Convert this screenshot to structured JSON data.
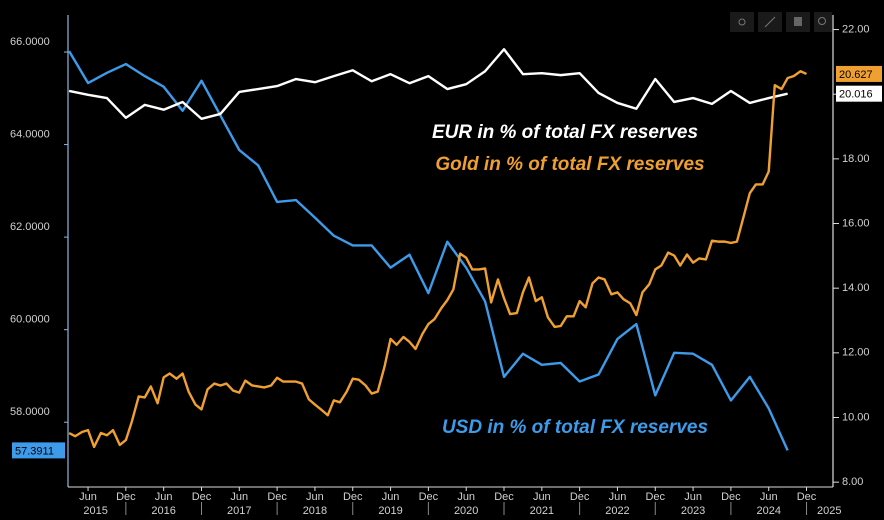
{
  "chart_data": {
    "type": "line",
    "xlim": [
      2015.235,
      2025.35
    ],
    "ylim": [
      56.6,
      66.8
    ],
    "y2lim": [
      7.85,
      22.45
    ],
    "yticks": [
      {
        "value": 58,
        "label": "58.0000"
      },
      {
        "value": 60,
        "label": "60.0000"
      },
      {
        "value": 62,
        "label": "62.0000"
      },
      {
        "value": 64,
        "label": "64.0000"
      },
      {
        "value": 66,
        "label": "66.0000"
      }
    ],
    "y2ticks": [
      {
        "value": 8,
        "label": "8.00"
      },
      {
        "value": 10,
        "label": "10.00"
      },
      {
        "value": 12,
        "label": "12.00"
      },
      {
        "value": 14,
        "label": "14.00"
      },
      {
        "value": 16,
        "label": "16.00"
      },
      {
        "value": 18,
        "label": "18.00"
      },
      {
        "value": 20,
        "label": "20.00"
      },
      {
        "value": 22,
        "label": "22.00"
      }
    ],
    "xticks": [
      {
        "value": 2015.5,
        "label": "Jun"
      },
      {
        "value": 2016.0,
        "label": "Dec"
      },
      {
        "value": 2016.5,
        "label": "Jun"
      },
      {
        "value": 2017.0,
        "label": "Dec"
      },
      {
        "value": 2017.5,
        "label": "Jun"
      },
      {
        "value": 2018.0,
        "label": "Dec"
      },
      {
        "value": 2018.5,
        "label": "Jun"
      },
      {
        "value": 2019.0,
        "label": "Dec"
      },
      {
        "value": 2019.5,
        "label": "Jun"
      },
      {
        "value": 2020.0,
        "label": "Dec"
      },
      {
        "value": 2020.5,
        "label": "Jun"
      },
      {
        "value": 2021.0,
        "label": "Dec"
      },
      {
        "value": 2021.5,
        "label": "Jun"
      },
      {
        "value": 2022.0,
        "label": "Dec"
      },
      {
        "value": 2022.5,
        "label": "Jun"
      },
      {
        "value": 2023.0,
        "label": "Dec"
      },
      {
        "value": 2023.5,
        "label": "Jun"
      },
      {
        "value": 2024.0,
        "label": "Dec"
      },
      {
        "value": 2024.5,
        "label": "Jun"
      },
      {
        "value": 2025.0,
        "label": "Dec"
      }
    ],
    "year_ticks": [
      {
        "value": 2015.6,
        "label": "2015"
      },
      {
        "value": 2016.5,
        "label": "2016"
      },
      {
        "value": 2017.5,
        "label": "2017"
      },
      {
        "value": 2018.5,
        "label": "2018"
      },
      {
        "value": 2019.5,
        "label": "2019"
      },
      {
        "value": 2020.5,
        "label": "2020"
      },
      {
        "value": 2021.5,
        "label": "2021"
      },
      {
        "value": 2022.5,
        "label": "2022"
      },
      {
        "value": 2023.5,
        "label": "2023"
      },
      {
        "value": 2024.5,
        "label": "2024"
      },
      {
        "value": 2025.3,
        "label": "2025"
      }
    ],
    "annotations": [
      {
        "text": "EUR in % of total FX reserves",
        "color": "#ffffff"
      },
      {
        "text": "Gold in % of total FX reserves",
        "color": "#f0a030"
      },
      {
        "text": "USD in % of total FX reserves",
        "color": "#3d9be9"
      }
    ],
    "series": [
      {
        "name": "USD",
        "color": "#3d9be9",
        "axis": "y",
        "end_label": "57.3911",
        "x": [
          2015.25,
          2015.5,
          2015.75,
          2016.0,
          2016.25,
          2016.5,
          2016.75,
          2017.0,
          2017.25,
          2017.5,
          2017.75,
          2018.0,
          2018.25,
          2018.5,
          2018.75,
          2019.0,
          2019.25,
          2019.5,
          2019.75,
          2020.0,
          2020.25,
          2020.5,
          2020.75,
          2021.0,
          2021.25,
          2021.5,
          2021.75,
          2022.0,
          2022.25,
          2022.5,
          2022.75,
          2023.0,
          2023.25,
          2023.5,
          2023.75,
          2024.0,
          2024.25,
          2024.5,
          2024.75
        ],
        "values": [
          66.02,
          65.33,
          65.55,
          65.74,
          65.48,
          65.25,
          64.73,
          65.38,
          64.63,
          63.88,
          63.55,
          62.76,
          62.8,
          62.42,
          62.03,
          61.82,
          61.82,
          61.34,
          61.62,
          60.79,
          61.9,
          61.34,
          60.61,
          58.98,
          59.48,
          59.24,
          59.28,
          58.88,
          59.03,
          59.8,
          60.12,
          58.58,
          59.5,
          59.48,
          59.24,
          58.47,
          58.98,
          58.3,
          57.3911
        ]
      },
      {
        "name": "EUR",
        "color": "#ffffff",
        "axis": "y2",
        "end_label": "20.016",
        "x": [
          2015.25,
          2015.5,
          2015.75,
          2016.0,
          2016.25,
          2016.5,
          2016.75,
          2017.0,
          2017.25,
          2017.5,
          2017.75,
          2018.0,
          2018.25,
          2018.5,
          2018.75,
          2019.0,
          2019.25,
          2019.5,
          2019.75,
          2020.0,
          2020.25,
          2020.5,
          2020.75,
          2021.0,
          2021.25,
          2021.5,
          2021.75,
          2022.0,
          2022.25,
          2022.5,
          2022.75,
          2023.0,
          2023.25,
          2023.5,
          2023.75,
          2024.0,
          2024.25,
          2024.5,
          2024.75
        ],
        "values": [
          20.1,
          19.98,
          19.88,
          19.27,
          19.67,
          19.52,
          19.76,
          19.24,
          19.39,
          20.07,
          20.16,
          20.25,
          20.47,
          20.37,
          20.56,
          20.74,
          20.4,
          20.62,
          20.34,
          20.56,
          20.16,
          20.31,
          20.71,
          21.39,
          20.62,
          20.65,
          20.59,
          20.65,
          20.04,
          19.73,
          19.55,
          20.47,
          19.76,
          19.88,
          19.7,
          20.1,
          19.73,
          19.88,
          20.016
        ]
      },
      {
        "name": "Gold",
        "color": "#f0a030",
        "axis": "y2",
        "end_label": "20.627",
        "x": [
          2015.25,
          2015.33,
          2015.42,
          2015.5,
          2015.58,
          2015.67,
          2015.75,
          2015.83,
          2015.92,
          2016.0,
          2016.08,
          2016.17,
          2016.25,
          2016.33,
          2016.42,
          2016.5,
          2016.58,
          2016.67,
          2016.75,
          2016.83,
          2016.92,
          2017.0,
          2017.08,
          2017.17,
          2017.25,
          2017.33,
          2017.42,
          2017.5,
          2017.58,
          2017.67,
          2017.75,
          2017.83,
          2017.92,
          2018.0,
          2018.08,
          2018.17,
          2018.25,
          2018.33,
          2018.42,
          2018.5,
          2018.58,
          2018.67,
          2018.75,
          2018.83,
          2018.92,
          2019.0,
          2019.08,
          2019.17,
          2019.25,
          2019.33,
          2019.42,
          2019.5,
          2019.58,
          2019.67,
          2019.75,
          2019.83,
          2019.92,
          2020.0,
          2020.08,
          2020.17,
          2020.25,
          2020.33,
          2020.42,
          2020.5,
          2020.58,
          2020.67,
          2020.75,
          2020.83,
          2020.92,
          2021.0,
          2021.08,
          2021.17,
          2021.25,
          2021.33,
          2021.42,
          2021.5,
          2021.58,
          2021.67,
          2021.75,
          2021.83,
          2021.92,
          2022.0,
          2022.08,
          2022.17,
          2022.25,
          2022.33,
          2022.42,
          2022.5,
          2022.58,
          2022.67,
          2022.75,
          2022.83,
          2022.92,
          2023.0,
          2023.08,
          2023.17,
          2023.25,
          2023.33,
          2023.42,
          2023.5,
          2023.58,
          2023.67,
          2023.75,
          2023.83,
          2023.92,
          2024.0,
          2024.08,
          2024.17,
          2024.25,
          2024.33,
          2024.42,
          2024.5,
          2024.58,
          2024.67,
          2024.75,
          2024.83,
          2024.92,
          2025.0
        ],
        "values": [
          9.52,
          9.42,
          9.55,
          9.61,
          9.09,
          9.52,
          9.45,
          9.61,
          9.15,
          9.3,
          9.88,
          10.65,
          10.62,
          10.96,
          10.44,
          11.24,
          11.36,
          11.2,
          11.36,
          10.8,
          10.4,
          10.25,
          10.87,
          11.05,
          10.99,
          11.05,
          10.83,
          10.77,
          11.14,
          10.99,
          10.96,
          10.93,
          10.99,
          11.23,
          11.11,
          11.11,
          11.11,
          11.05,
          10.56,
          10.4,
          10.25,
          10.07,
          10.53,
          10.47,
          10.8,
          11.2,
          11.17,
          10.99,
          10.74,
          10.8,
          11.57,
          12.43,
          12.25,
          12.49,
          12.34,
          12.12,
          12.58,
          12.89,
          13.04,
          13.38,
          13.63,
          13.96,
          15.07,
          14.94,
          14.58,
          14.58,
          14.61,
          13.56,
          14.27,
          13.69,
          13.2,
          13.23,
          13.87,
          14.33,
          13.6,
          13.72,
          13.1,
          12.8,
          12.83,
          13.13,
          13.13,
          13.6,
          13.41,
          14.15,
          14.33,
          14.27,
          13.81,
          13.87,
          13.66,
          13.53,
          13.17,
          13.87,
          14.12,
          14.58,
          14.7,
          15.1,
          15.01,
          14.7,
          15.04,
          14.79,
          14.92,
          14.89,
          15.47,
          15.44,
          15.44,
          15.4,
          15.44,
          16.23,
          16.94,
          17.21,
          17.21,
          17.61,
          20.28,
          20.16,
          20.5,
          20.56,
          20.71,
          20.627
        ]
      }
    ]
  }
}
